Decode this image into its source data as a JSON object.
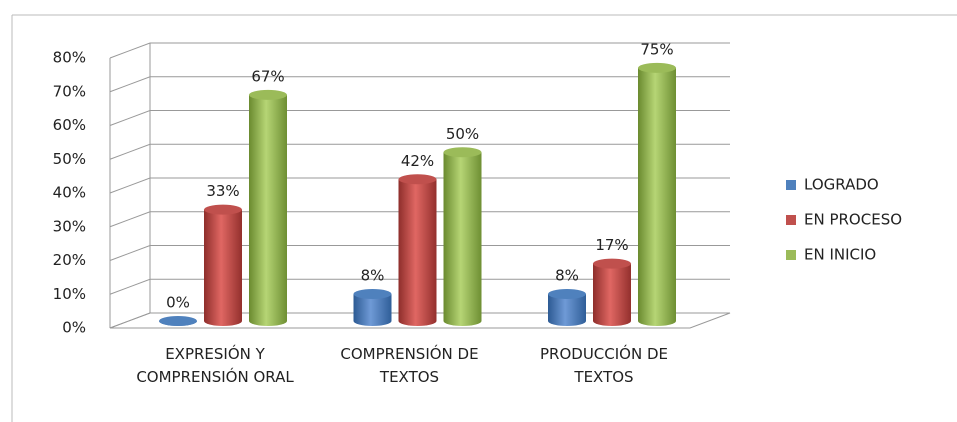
{
  "chart_data": {
    "type": "bar3d",
    "categories": [
      "EXPRESIÓN Y COMPRENSIÓN ORAL",
      "COMPRENSIÓN DE TEXTOS",
      "PRODUCCIÓN DE TEXTOS"
    ],
    "series": [
      {
        "name": "LOGRADO",
        "color": "#4f81bd",
        "values": [
          0,
          8,
          8
        ],
        "value_labels": [
          "0%",
          "8%",
          "8%"
        ]
      },
      {
        "name": "EN PROCESO",
        "color": "#c0504d",
        "values": [
          33,
          42,
          17
        ],
        "value_labels": [
          "33%",
          "42%",
          "17%"
        ]
      },
      {
        "name": "EN INICIO",
        "color": "#9bbb59",
        "values": [
          67,
          50,
          75
        ],
        "value_labels": [
          "67%",
          "50%",
          "75%"
        ]
      }
    ],
    "ylim": [
      0,
      80
    ],
    "yticks": [
      {
        "value": 0,
        "label": "0%"
      },
      {
        "value": 10,
        "label": "10%"
      },
      {
        "value": 20,
        "label": "20%"
      },
      {
        "value": 30,
        "label": "30%"
      },
      {
        "value": 40,
        "label": "40%"
      },
      {
        "value": 50,
        "label": "50%"
      },
      {
        "value": 60,
        "label": "60%"
      },
      {
        "value": 70,
        "label": "70%"
      },
      {
        "value": 80,
        "label": "80%"
      }
    ],
    "grid": true,
    "legend": "right"
  }
}
